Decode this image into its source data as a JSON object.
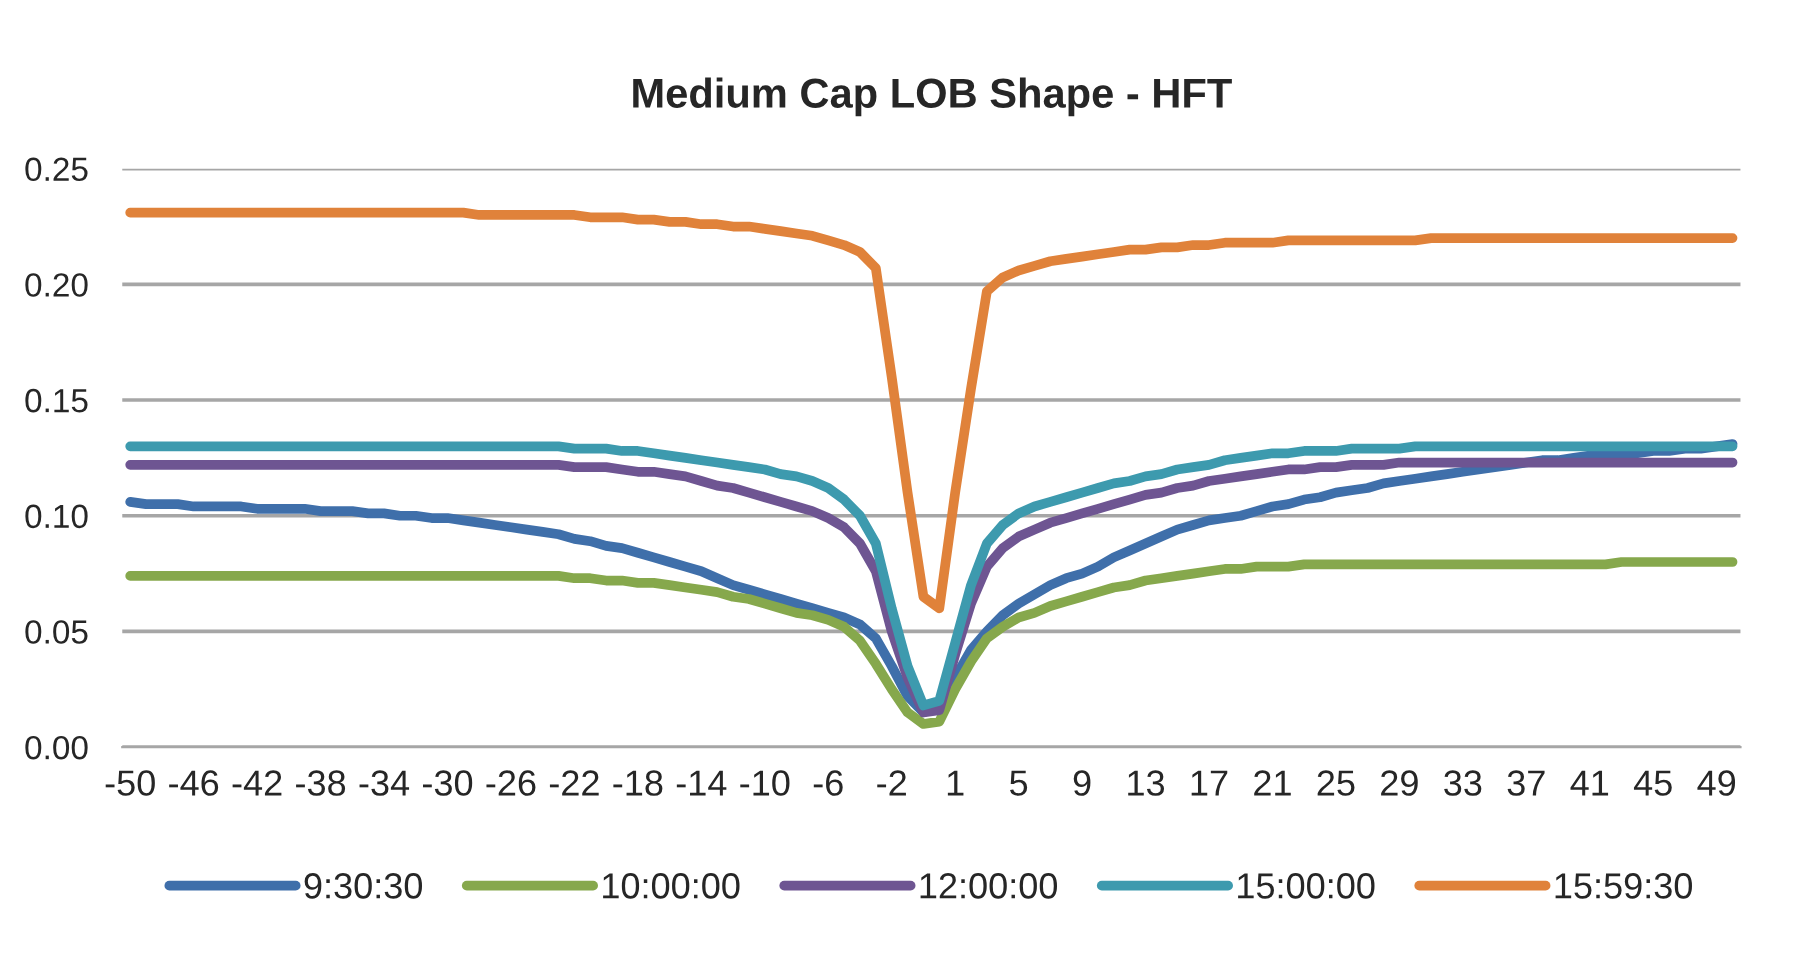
{
  "chart_data": {
    "type": "line",
    "title": "Medium Cap LOB Shape - HFT",
    "categories": [
      "-50",
      null,
      null,
      null,
      "-46",
      null,
      null,
      null,
      "-42",
      null,
      null,
      null,
      "-38",
      null,
      null,
      null,
      "-34",
      null,
      null,
      null,
      "-30",
      null,
      null,
      null,
      "-26",
      null,
      null,
      null,
      "-22",
      null,
      null,
      null,
      "-18",
      null,
      null,
      null,
      "-14",
      null,
      null,
      null,
      "-10",
      null,
      null,
      null,
      "-6",
      null,
      null,
      null,
      "-2",
      null,
      null,
      null,
      "1",
      null,
      null,
      null,
      "5",
      null,
      null,
      null,
      "9",
      null,
      null,
      null,
      "13",
      null,
      null,
      null,
      "17",
      null,
      null,
      null,
      "21",
      null,
      null,
      null,
      "25",
      null,
      null,
      null,
      "29",
      null,
      null,
      null,
      "33",
      null,
      null,
      null,
      "37",
      null,
      null,
      null,
      "41",
      null,
      null,
      null,
      "45",
      null,
      null,
      null,
      "49",
      null
    ],
    "ylim": [
      0,
      0.25
    ],
    "yticks": [
      {
        "value": 0,
        "label": "0.00"
      },
      {
        "value": 0.05,
        "label": "0.05"
      },
      {
        "value": 0.1,
        "label": "0.10"
      },
      {
        "value": 0.15,
        "label": "0.15"
      },
      {
        "value": 0.2,
        "label": "0.20"
      },
      {
        "value": 0.25,
        "label": "0.25"
      }
    ],
    "grid": "y",
    "legend": "bottom",
    "marker": "none",
    "line_style": "solid",
    "series": [
      {
        "name": "9:30:30",
        "color": "#3f6faa",
        "values": [
          0.106,
          0.105,
          0.105,
          0.105,
          0.104,
          0.104,
          0.104,
          0.104,
          0.103,
          0.103,
          0.103,
          0.103,
          0.102,
          0.102,
          0.102,
          0.101,
          0.101,
          0.1,
          0.1,
          0.099,
          0.099,
          0.098,
          0.097,
          0.096,
          0.095,
          0.094,
          0.093,
          0.092,
          0.09,
          0.089,
          0.087,
          0.086,
          0.084,
          0.082,
          0.08,
          0.078,
          0.076,
          0.073,
          0.07,
          0.068,
          0.066,
          0.064,
          0.062,
          0.06,
          0.058,
          0.056,
          0.053,
          0.047,
          0.035,
          0.022,
          0.015,
          0.018,
          0.03,
          0.042,
          0.05,
          0.057,
          0.062,
          0.066,
          0.07,
          0.073,
          0.075,
          0.078,
          0.082,
          0.085,
          0.088,
          0.091,
          0.094,
          0.096,
          0.098,
          0.099,
          0.1,
          0.102,
          0.104,
          0.105,
          0.107,
          0.108,
          0.11,
          0.111,
          0.112,
          0.114,
          0.115,
          0.116,
          0.117,
          0.118,
          0.119,
          0.12,
          0.121,
          0.122,
          0.123,
          0.124,
          0.124,
          0.125,
          0.126,
          0.126,
          0.127,
          0.127,
          0.128,
          0.128,
          0.129,
          0.129,
          0.13,
          0.131
        ]
      },
      {
        "name": "10:00:00",
        "color": "#86a84c",
        "values": [
          0.074,
          0.074,
          0.074,
          0.074,
          0.074,
          0.074,
          0.074,
          0.074,
          0.074,
          0.074,
          0.074,
          0.074,
          0.074,
          0.074,
          0.074,
          0.074,
          0.074,
          0.074,
          0.074,
          0.074,
          0.074,
          0.074,
          0.074,
          0.074,
          0.074,
          0.074,
          0.074,
          0.074,
          0.073,
          0.073,
          0.072,
          0.072,
          0.071,
          0.071,
          0.07,
          0.069,
          0.068,
          0.067,
          0.065,
          0.064,
          0.062,
          0.06,
          0.058,
          0.057,
          0.055,
          0.052,
          0.046,
          0.036,
          0.025,
          0.015,
          0.01,
          0.011,
          0.025,
          0.037,
          0.047,
          0.052,
          0.056,
          0.058,
          0.061,
          0.063,
          0.065,
          0.067,
          0.069,
          0.07,
          0.072,
          0.073,
          0.074,
          0.075,
          0.076,
          0.077,
          0.077,
          0.078,
          0.078,
          0.078,
          0.079,
          0.079,
          0.079,
          0.079,
          0.079,
          0.079,
          0.079,
          0.079,
          0.079,
          0.079,
          0.079,
          0.079,
          0.079,
          0.079,
          0.079,
          0.079,
          0.079,
          0.079,
          0.079,
          0.079,
          0.08,
          0.08,
          0.08,
          0.08,
          0.08,
          0.08,
          0.08,
          0.08
        ]
      },
      {
        "name": "12:00:00",
        "color": "#6e5592",
        "values": [
          0.122,
          0.122,
          0.122,
          0.122,
          0.122,
          0.122,
          0.122,
          0.122,
          0.122,
          0.122,
          0.122,
          0.122,
          0.122,
          0.122,
          0.122,
          0.122,
          0.122,
          0.122,
          0.122,
          0.122,
          0.122,
          0.122,
          0.122,
          0.122,
          0.122,
          0.122,
          0.122,
          0.122,
          0.121,
          0.121,
          0.121,
          0.12,
          0.119,
          0.119,
          0.118,
          0.117,
          0.115,
          0.113,
          0.112,
          0.11,
          0.108,
          0.106,
          0.104,
          0.102,
          0.099,
          0.095,
          0.088,
          0.076,
          0.05,
          0.03,
          0.015,
          0.016,
          0.04,
          0.062,
          0.078,
          0.086,
          0.091,
          0.094,
          0.097,
          0.099,
          0.101,
          0.103,
          0.105,
          0.107,
          0.109,
          0.11,
          0.112,
          0.113,
          0.115,
          0.116,
          0.117,
          0.118,
          0.119,
          0.12,
          0.12,
          0.121,
          0.121,
          0.122,
          0.122,
          0.122,
          0.123,
          0.123,
          0.123,
          0.123,
          0.123,
          0.123,
          0.123,
          0.123,
          0.123,
          0.123,
          0.123,
          0.123,
          0.123,
          0.123,
          0.123,
          0.123,
          0.123,
          0.123,
          0.123,
          0.123,
          0.123,
          0.123
        ]
      },
      {
        "name": "15:00:00",
        "color": "#3d9aae",
        "values": [
          0.13,
          0.13,
          0.13,
          0.13,
          0.13,
          0.13,
          0.13,
          0.13,
          0.13,
          0.13,
          0.13,
          0.13,
          0.13,
          0.13,
          0.13,
          0.13,
          0.13,
          0.13,
          0.13,
          0.13,
          0.13,
          0.13,
          0.13,
          0.13,
          0.13,
          0.13,
          0.13,
          0.13,
          0.129,
          0.129,
          0.129,
          0.128,
          0.128,
          0.127,
          0.126,
          0.125,
          0.124,
          0.123,
          0.122,
          0.121,
          0.12,
          0.118,
          0.117,
          0.115,
          0.112,
          0.107,
          0.1,
          0.088,
          0.06,
          0.035,
          0.018,
          0.02,
          0.045,
          0.07,
          0.088,
          0.096,
          0.101,
          0.104,
          0.106,
          0.108,
          0.11,
          0.112,
          0.114,
          0.115,
          0.117,
          0.118,
          0.12,
          0.121,
          0.122,
          0.124,
          0.125,
          0.126,
          0.127,
          0.127,
          0.128,
          0.128,
          0.128,
          0.129,
          0.129,
          0.129,
          0.129,
          0.13,
          0.13,
          0.13,
          0.13,
          0.13,
          0.13,
          0.13,
          0.13,
          0.13,
          0.13,
          0.13,
          0.13,
          0.13,
          0.13,
          0.13,
          0.13,
          0.13,
          0.13,
          0.13,
          0.13,
          0.13
        ]
      },
      {
        "name": "15:59:30",
        "color": "#e0823a",
        "values": [
          0.231,
          0.231,
          0.231,
          0.231,
          0.231,
          0.231,
          0.231,
          0.231,
          0.231,
          0.231,
          0.231,
          0.231,
          0.231,
          0.231,
          0.231,
          0.231,
          0.231,
          0.231,
          0.231,
          0.231,
          0.231,
          0.231,
          0.23,
          0.23,
          0.23,
          0.23,
          0.23,
          0.23,
          0.23,
          0.229,
          0.229,
          0.229,
          0.228,
          0.228,
          0.227,
          0.227,
          0.226,
          0.226,
          0.225,
          0.225,
          0.224,
          0.223,
          0.222,
          0.221,
          0.219,
          0.217,
          0.214,
          0.207,
          0.16,
          0.11,
          0.065,
          0.06,
          0.11,
          0.155,
          0.197,
          0.203,
          0.206,
          0.208,
          0.21,
          0.211,
          0.212,
          0.213,
          0.214,
          0.215,
          0.215,
          0.216,
          0.216,
          0.217,
          0.217,
          0.218,
          0.218,
          0.218,
          0.218,
          0.219,
          0.219,
          0.219,
          0.219,
          0.219,
          0.219,
          0.219,
          0.219,
          0.219,
          0.22,
          0.22,
          0.22,
          0.22,
          0.22,
          0.22,
          0.22,
          0.22,
          0.22,
          0.22,
          0.22,
          0.22,
          0.22,
          0.22,
          0.22,
          0.22,
          0.22,
          0.22,
          0.22,
          0.22
        ]
      }
    ]
  }
}
